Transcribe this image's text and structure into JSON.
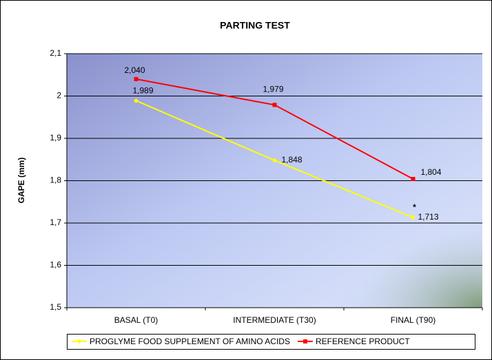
{
  "chart_data": {
    "type": "line",
    "title": "PARTING TEST",
    "ylabel": "GAPE (mm)",
    "categories": [
      "BASAL (T0)",
      "INTERMEDIATE (T30)",
      "FINAL (T90)"
    ],
    "series": [
      {
        "name": "PROGLYME FOOD SUPPLEMENT OF AMINO ACIDS",
        "color": "#ffff00",
        "marker": "diamond",
        "values": [
          1.989,
          1.848,
          1.713
        ],
        "value_labels": [
          "1,989",
          "1,848",
          "1,713"
        ]
      },
      {
        "name": "REFERENCE PRODUCT",
        "color": "#ff0000",
        "marker": "square",
        "values": [
          2.04,
          1.979,
          1.804
        ],
        "value_labels": [
          "2,040",
          "1,979",
          "1,804"
        ]
      }
    ],
    "annotation": "*",
    "ylim": [
      1.5,
      2.1
    ],
    "yticks": [
      {
        "value": 1.5,
        "label": "1,5"
      },
      {
        "value": 1.6,
        "label": "1,6"
      },
      {
        "value": 1.7,
        "label": "1,7"
      },
      {
        "value": 1.8,
        "label": "1,8"
      },
      {
        "value": 1.9,
        "label": "1,9"
      },
      2,
      {
        "value": 2.1,
        "label": "2,1"
      }
    ],
    "grid": true,
    "legend": "bottom"
  }
}
